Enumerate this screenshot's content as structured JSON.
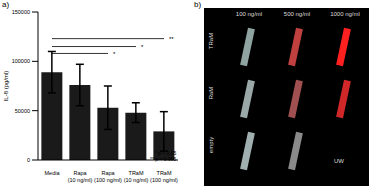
{
  "chart_data": {
    "type": "bar",
    "title": "a)",
    "y_label": "IL-8 (pg/ml)",
    "categories": [
      "Media",
      "Rapa (10 ng/ml)",
      "Rapa (100 ng/ml)",
      "TRaM (10 ng/ml)",
      "TRaM (100 ng/ml)"
    ],
    "values": [
      89000,
      76000,
      53000,
      48000,
      29000
    ],
    "errors": [
      21000,
      21000,
      22000,
      10000,
      20000
    ],
    "color": "#1a1a1a",
    "ylim": [
      0,
      150000
    ],
    "yticks": [
      0,
      50000,
      100000,
      150000
    ],
    "grid": false,
    "annotations": [
      {
        "text": "*",
        "from": "Media",
        "to": "Rapa (100 ng/ml)",
        "y": 108000
      },
      {
        "text": "*",
        "from": "Media",
        "to": "TRaM (10 ng/ml)",
        "y": 115000
      },
      {
        "text": "**",
        "from": "Media",
        "to": "TRaM (100 ng/ml)",
        "y": 123000
      }
    ],
    "notes": [
      "* p < 0.05",
      "** p < 0.005"
    ]
  },
  "panel_b": {
    "label": "b)",
    "columns": [
      "100 ng/ml",
      "500 ng/ml",
      "1000 ng/ml"
    ],
    "rows": [
      "TRaM",
      "RaM",
      "empty"
    ],
    "corner_label": "UW"
  }
}
